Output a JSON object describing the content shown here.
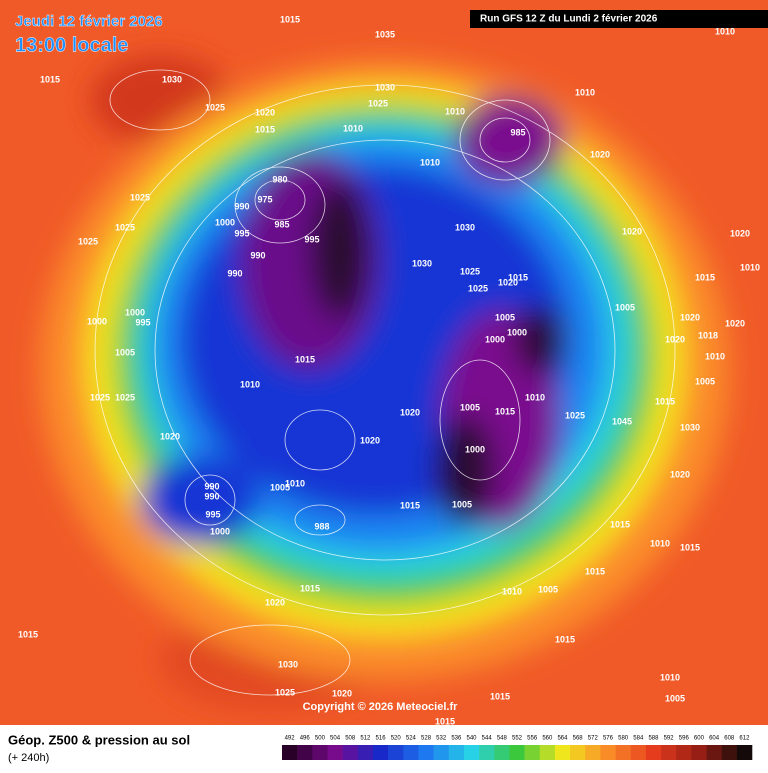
{
  "header": {
    "date": "Jeudi 12 février 2026",
    "time": "13:00 locale",
    "run": "Run GFS 12 Z du Lundi 2 février 2026"
  },
  "copyright": "Copyright © 2026 Meteociel.fr",
  "legend": {
    "title": "Géop. Z500 & pression au sol",
    "lead": "(+ 240h)"
  },
  "colorbar": {
    "ticks": [
      492,
      496,
      500,
      504,
      508,
      512,
      516,
      520,
      524,
      528,
      532,
      536,
      540,
      544,
      548,
      552,
      556,
      560,
      564,
      568,
      572,
      576,
      580,
      584,
      588,
      592,
      596,
      600,
      604,
      608,
      612
    ]
  },
  "pressure_labels": [
    1015,
    1035,
    1010,
    1015,
    1030,
    1030,
    1025,
    1020,
    1025,
    1010,
    1010,
    985,
    1015,
    1010,
    1020,
    980,
    1010,
    975,
    1025,
    990,
    985,
    1030,
    1020,
    1020,
    1025,
    1000,
    995,
    995,
    1025,
    990,
    1030,
    1025,
    1015,
    1015,
    1010,
    990,
    1025,
    1020,
    1000,
    995,
    1000,
    1005,
    1005,
    1020,
    1020,
    1018,
    1000,
    1000,
    1020,
    1005,
    1015,
    1010,
    1005,
    1010,
    1025,
    1025,
    1010,
    1015,
    1020,
    1015,
    1005,
    1025,
    1045,
    1030,
    1020,
    1020,
    1000,
    1020,
    1010,
    990,
    990,
    1005,
    995,
    1015,
    1005,
    1000,
    988,
    1015,
    1010,
    1015,
    1015,
    1020,
    1015,
    1010,
    1005,
    1015,
    1015,
    1030,
    1010,
    1025,
    1020,
    1015,
    1005,
    1015
  ]
}
